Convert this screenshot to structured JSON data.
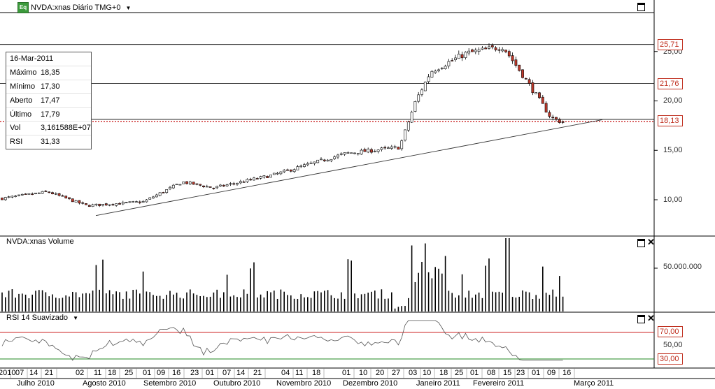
{
  "header": {
    "badge": "Eq",
    "title": "NVDA:xnas Diário TMG+0",
    "dropdown_icon": "triangle-down-icon"
  },
  "info_box": {
    "date": "16-Mar-2011",
    "rows": [
      {
        "label": "Máximo",
        "value": "18,35"
      },
      {
        "label": "Mínimo",
        "value": "17,30"
      },
      {
        "label": "Aberto",
        "value": "17,47"
      },
      {
        "label": "Último",
        "value": "17,79"
      },
      {
        "label": "Vol",
        "value": "3,161588E+07"
      },
      {
        "label": "RSI",
        "value": "31,33"
      }
    ]
  },
  "price_axis": {
    "ticks": [
      "25,00",
      "20,00",
      "15,00",
      "10,00"
    ]
  },
  "price_tags": [
    {
      "label": "25,71",
      "value": 25.71,
      "style": "solid"
    },
    {
      "label": "21,76",
      "value": 21.76,
      "style": "solid"
    },
    {
      "label": "18,13",
      "value": 18.13,
      "style": "dotted-red"
    }
  ],
  "volume_panel": {
    "title": "NVDA:xnas Volume",
    "axis_label": "50.000.000"
  },
  "rsi_panel": {
    "title": "RSI 14 Suavizado",
    "levels": [
      "70,00",
      "50,00",
      "30,00"
    ]
  },
  "time_axis": {
    "days": [
      "2010",
      "07",
      "14",
      "21",
      "02",
      "11",
      "18",
      "25",
      "01",
      "09",
      "16",
      "23",
      "01",
      "07",
      "14",
      "21",
      "04",
      "11",
      "18",
      "01",
      "10",
      "20",
      "27",
      "03",
      "10",
      "18",
      "25",
      "01",
      "08",
      "15",
      "23",
      "01",
      "09",
      "16"
    ],
    "months": [
      "Julho 2010",
      "Agosto 2010",
      "Setembro 2010",
      "Outubro 2010",
      "Novembro 2010",
      "Dezembro 2010",
      "Janeiro 2011",
      "Fevereiro 2011",
      "Março 2011"
    ]
  },
  "colors": {
    "up": "#ffffff",
    "down": "#c0392b",
    "tag": "#c03020",
    "rsi_high": "#cc2222",
    "rsi_low": "#228822"
  },
  "chart_data": {
    "type": "candlestick",
    "symbol": "NVDA:xnas",
    "period": "Jul 2010 – Mar 2011",
    "close_anchors": [
      {
        "date": "2010-07-01",
        "close": 10.1
      },
      {
        "date": "2010-07-20",
        "close": 10.8
      },
      {
        "date": "2010-08-05",
        "close": 9.4
      },
      {
        "date": "2010-09-01",
        "close": 9.8
      },
      {
        "date": "2010-09-20",
        "close": 11.8
      },
      {
        "date": "2010-10-05",
        "close": 11.2
      },
      {
        "date": "2010-11-01",
        "close": 12.5
      },
      {
        "date": "2010-12-01",
        "close": 14.7
      },
      {
        "date": "2010-12-28",
        "close": 15.3
      },
      {
        "date": "2011-01-05",
        "close": 20.0
      },
      {
        "date": "2011-01-12",
        "close": 23.0
      },
      {
        "date": "2011-01-28",
        "close": 24.8
      },
      {
        "date": "2011-02-15",
        "close": 25.5
      },
      {
        "date": "2011-02-25",
        "close": 22.5
      },
      {
        "date": "2011-03-10",
        "close": 18.3
      },
      {
        "date": "2011-03-16",
        "close": 17.79
      }
    ],
    "trendline": {
      "from": {
        "date": "2010-08-05",
        "value": 8.4
      },
      "to": {
        "date": "2011-03-16",
        "value": 18.1
      }
    },
    "ylim": [
      7.0,
      28.5
    ]
  }
}
